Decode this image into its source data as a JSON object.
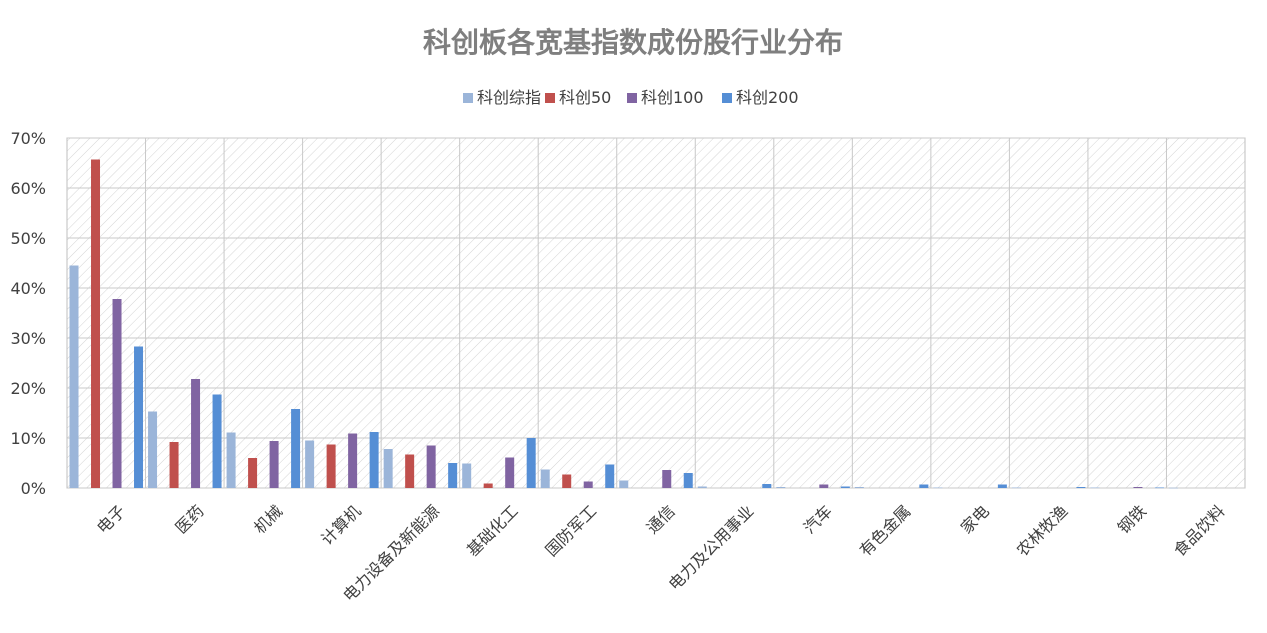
{
  "chart_data": {
    "type": "bar",
    "title": "科创板各宽基指数成份股行业分布",
    "xlabel": "",
    "ylabel": "",
    "ylim": [
      0,
      70
    ],
    "yticks": [
      "0%",
      "10%",
      "20%",
      "30%",
      "40%",
      "50%",
      "60%",
      "70%"
    ],
    "grid": true,
    "legend_position": "top",
    "categories": [
      "电子",
      "医药",
      "机械",
      "计算机",
      "电力设备及新能源",
      "基础化工",
      "国防军工",
      "通信",
      "电力及公用事业",
      "汽车",
      "有色金属",
      "家电",
      "农林牧渔",
      "钢铁",
      "食品饮料"
    ],
    "series": [
      {
        "name": "科创综指",
        "color": "#9bb5d9",
        "values": [
          44.5,
          15.3,
          11.1,
          9.5,
          7.8,
          4.9,
          3.7,
          1.5,
          0.3,
          0.2,
          0.2,
          0.1,
          0.1,
          0.1,
          0.05
        ]
      },
      {
        "name": "科创50",
        "color": "#c0504d",
        "values": [
          65.7,
          9.2,
          6.0,
          8.7,
          6.7,
          0.9,
          2.7,
          0,
          0,
          0,
          0,
          0,
          0,
          0,
          0
        ]
      },
      {
        "name": "科创100",
        "color": "#8064a2",
        "values": [
          37.8,
          21.8,
          9.4,
          10.9,
          8.5,
          6.1,
          1.3,
          3.6,
          0,
          0.7,
          0,
          0,
          0,
          0.2,
          0
        ]
      },
      {
        "name": "科创200",
        "color": "#558ed5",
        "values": [
          28.3,
          18.7,
          15.8,
          11.2,
          5.0,
          10.0,
          4.7,
          3.0,
          0.8,
          0.3,
          0.7,
          0.7,
          0.2,
          0.1,
          0
        ]
      }
    ]
  }
}
